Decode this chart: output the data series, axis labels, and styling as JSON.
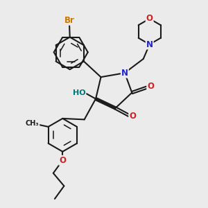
{
  "bg_color": "#ebebeb",
  "bond_color": "#1a1a1a",
  "bond_width": 1.5,
  "atom_colors": {
    "Br": "#cc7700",
    "N": "#2222cc",
    "O": "#cc2222",
    "HO": "#007777",
    "C": "#1a1a1a"
  },
  "font_size": 8.5
}
